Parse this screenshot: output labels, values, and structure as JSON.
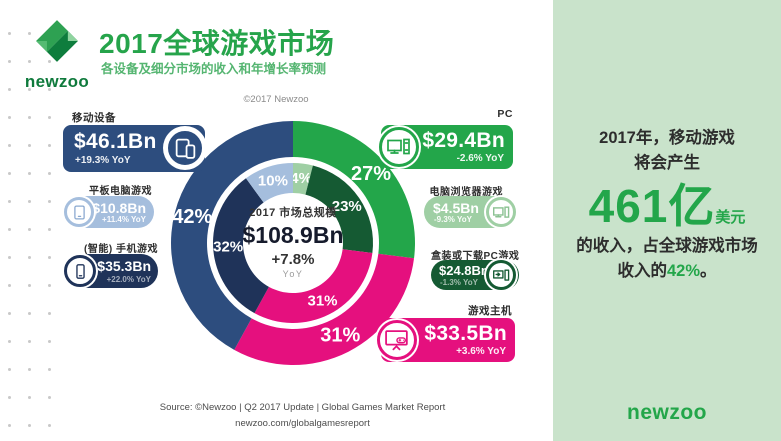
{
  "header": {
    "logo_text": "newzoo",
    "title": "2017全球游戏市场",
    "subtitle": "各设备及细分市场的收入和年增长率预测",
    "copyright": "©2017 Newzoo"
  },
  "cards": {
    "mobile": {
      "label": "移动设备",
      "value": "$46.1Bn",
      "yoy": "+19.3% YoY"
    },
    "tablet": {
      "label": "平板电脑游戏",
      "value": "$10.8Bn",
      "yoy": "+11.4% YoY"
    },
    "smartphone": {
      "label": "(智能) 手机游戏",
      "value": "$35.3Bn",
      "yoy": "+22.0% YoY"
    },
    "pc": {
      "label": "PC",
      "value": "$29.4Bn",
      "yoy": "-2.6% YoY"
    },
    "browser": {
      "label": "电脑浏览器游戏",
      "value": "$4.5Bn",
      "yoy": "-9.3% YoY"
    },
    "boxed_pc": {
      "label": "盒装或下载PC游戏",
      "value": "$24.8Bn",
      "yoy": "-1.3% YoY"
    },
    "console": {
      "label": "游戏主机",
      "value": "$33.5Bn",
      "yoy": "+3.6% YoY"
    }
  },
  "chart_data": {
    "type": "donut",
    "title": "2017 市场总规模",
    "total_value": "$108.9Bn",
    "total_growth": "+7.8%",
    "growth_unit": "YoY",
    "outer_ring": [
      {
        "id": "pc",
        "name": "PC",
        "pct": 27,
        "color": "#23a64a"
      },
      {
        "id": "console",
        "name": "游戏主机",
        "pct": 31,
        "color": "#e5107e"
      },
      {
        "id": "mobile",
        "name": "移动设备",
        "pct": 42,
        "color": "#2d4d7e"
      }
    ],
    "inner_ring": [
      {
        "id": "browser",
        "name": "电脑浏览器游戏",
        "pct": 4,
        "color": "#9fcfa4"
      },
      {
        "id": "boxed-pc",
        "name": "盒装或下载PC游戏",
        "pct": 23,
        "color": "#155a33"
      },
      {
        "id": "console",
        "name": "游戏主机",
        "pct": 31,
        "color": "#e5107e"
      },
      {
        "id": "smartphone",
        "name": "(智能) 手机游戏",
        "pct": 32,
        "color": "#1f3359"
      },
      {
        "id": "tablet",
        "name": "平板电脑游戏",
        "pct": 10,
        "color": "#a5bedd"
      }
    ]
  },
  "panel": {
    "line1": "2017年，移动游戏",
    "line2": "将会产生",
    "big_number": "461亿",
    "big_suffix": "美元",
    "line3": "的收入，占全球游戏市场",
    "line4_pre": "收入的",
    "line4_highlight": "42%",
    "line4_post": "。",
    "logo_text": "newzoo"
  },
  "footer": {
    "source": "Source: ©Newzoo | Q2 2017 Update | Global Games Market Report",
    "url": "newzoo.com/globalgamesreport"
  },
  "colors": {
    "brand_green": "#23a64a",
    "light_green": "#9fcfa4",
    "dark_green": "#155a33",
    "blue": "#2d4d7e",
    "navy": "#1f3359",
    "light_blue": "#a5bedd",
    "magenta": "#e5107e",
    "panel_bg": "#c9e3cb"
  }
}
